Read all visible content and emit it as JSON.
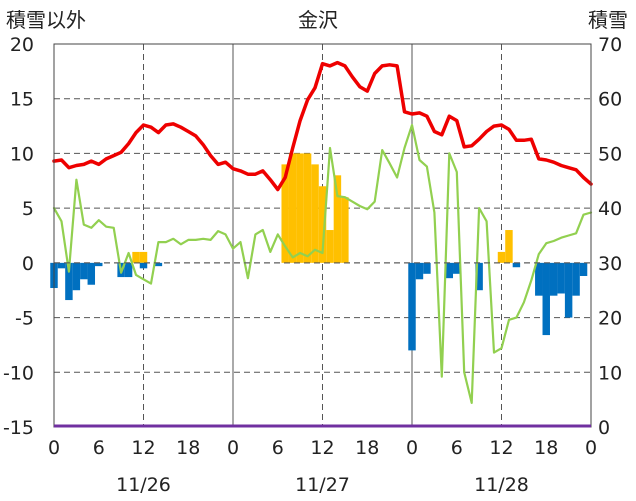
{
  "header": {
    "left_label": "積雪以外",
    "title": "金沢",
    "right_label": "積雪"
  },
  "chart_data": {
    "type": "bar+line",
    "title": "金沢",
    "y_left": {
      "ylim": [
        -15,
        20
      ],
      "ticks": [
        20,
        15,
        10,
        5,
        0,
        -5,
        -10,
        -15
      ],
      "label": "積雪以外"
    },
    "y_right": {
      "ylim": [
        0,
        70
      ],
      "ticks": [
        70,
        60,
        50,
        40,
        30,
        20,
        10,
        0
      ],
      "label": "積雪"
    },
    "x": {
      "hour_ticks": [
        "0",
        "6",
        "12",
        "18",
        "0",
        "6",
        "12",
        "18",
        "0",
        "6",
        "12",
        "18",
        "0"
      ],
      "dates": [
        "11/26",
        "11/27",
        "11/28"
      ],
      "grid": true
    },
    "legend": "none",
    "colors": {
      "temperature": "#ee0000",
      "snow_depth": "#92d050",
      "snowfall": "#ffc000",
      "precip_negative": "#0070c0",
      "baseline_purple": "#7030a0"
    },
    "series": [
      {
        "key": "temperature",
        "axis": "left",
        "style": "line",
        "hourly": [
          9.3,
          9.4,
          8.7,
          8.9,
          9.0,
          9.3,
          9.0,
          9.5,
          9.8,
          10.1,
          10.9,
          11.9,
          12.6,
          12.4,
          11.9,
          12.6,
          12.7,
          12.4,
          12.0,
          11.6,
          10.8,
          9.8,
          9.0,
          9.2,
          8.6,
          8.4,
          8.1,
          8.1,
          8.4,
          7.6,
          6.7,
          7.8,
          10.5,
          13.0,
          14.9,
          16.0,
          18.2,
          18.0,
          18.3,
          18.0,
          17.0,
          16.1,
          15.7,
          17.3,
          18.0,
          18.1,
          18.0,
          13.8,
          13.6,
          13.7,
          13.4,
          12.0,
          11.7,
          13.4,
          13.0,
          10.6,
          10.7,
          11.3,
          12.0,
          12.5,
          12.6,
          12.2,
          11.2,
          11.2,
          11.3,
          9.5,
          9.4,
          9.2,
          8.9,
          8.7,
          8.5,
          7.8,
          7.2
        ]
      },
      {
        "key": "snow_depth",
        "axis": "left",
        "style": "line",
        "hourly": [
          5.0,
          3.8,
          -0.8,
          7.6,
          3.5,
          3.2,
          3.9,
          3.3,
          3.2,
          -0.9,
          0.9,
          -1.1,
          -1.5,
          -1.9,
          1.9,
          1.9,
          2.2,
          1.7,
          2.1,
          2.1,
          2.2,
          2.1,
          2.9,
          2.6,
          1.3,
          1.9,
          -1.4,
          2.6,
          3.0,
          1.0,
          2.6,
          1.5,
          0.5,
          0.9,
          0.6,
          1.2,
          0.9,
          10.5,
          6.1,
          6.0,
          5.6,
          5.2,
          4.9,
          5.6,
          10.3,
          9.1,
          7.8,
          10.5,
          12.6,
          9.4,
          8.8,
          4.6,
          -10.4,
          10.0,
          8.3,
          -10.0,
          -12.8,
          5.0,
          3.8,
          -8.2,
          -7.8,
          -5.2,
          -5.0,
          -3.6,
          -1.6,
          0.8,
          1.8,
          2.0,
          2.3,
          2.5,
          2.7,
          4.4,
          4.6
        ]
      },
      {
        "key": "snowfall",
        "axis": "left",
        "style": "bar",
        "hourly": [
          0,
          0,
          0,
          0,
          0,
          0,
          0,
          0,
          0,
          0,
          0,
          1,
          1,
          0,
          0,
          0,
          0,
          0,
          0,
          0,
          0,
          0,
          0,
          0,
          0,
          0,
          0,
          0,
          0,
          0,
          0,
          9,
          10,
          10,
          10,
          9,
          7,
          3,
          8,
          6,
          0,
          0,
          0,
          0,
          0,
          0,
          0,
          0,
          0,
          0,
          0,
          0,
          0,
          0,
          0,
          0,
          0,
          0,
          0,
          0,
          1,
          3,
          0,
          0,
          0,
          0,
          0,
          0,
          0,
          0,
          0,
          0,
          0
        ]
      },
      {
        "key": "precip_negative",
        "axis": "left",
        "style": "bar",
        "hourly": [
          -2.3,
          -0.5,
          -3.4,
          -2.5,
          -1.5,
          -2.0,
          -0.3,
          0,
          0,
          -1.3,
          -1.3,
          0,
          -0.5,
          0,
          -0.3,
          0,
          0,
          0,
          0,
          0,
          0,
          0,
          0,
          0,
          0,
          0,
          0,
          0,
          0,
          0,
          0,
          0,
          0,
          0,
          0,
          0,
          0,
          0,
          0,
          0,
          0,
          0,
          0,
          0,
          0,
          0,
          0,
          0,
          -8.0,
          -1.5,
          -1.0,
          0,
          0,
          -1.4,
          -1.0,
          0,
          0,
          -2.5,
          0,
          0,
          0,
          0,
          -0.4,
          0,
          0,
          -3.0,
          -6.6,
          -3.0,
          -2.8,
          -5.0,
          -3.0,
          -1.2,
          0
        ]
      }
    ]
  }
}
